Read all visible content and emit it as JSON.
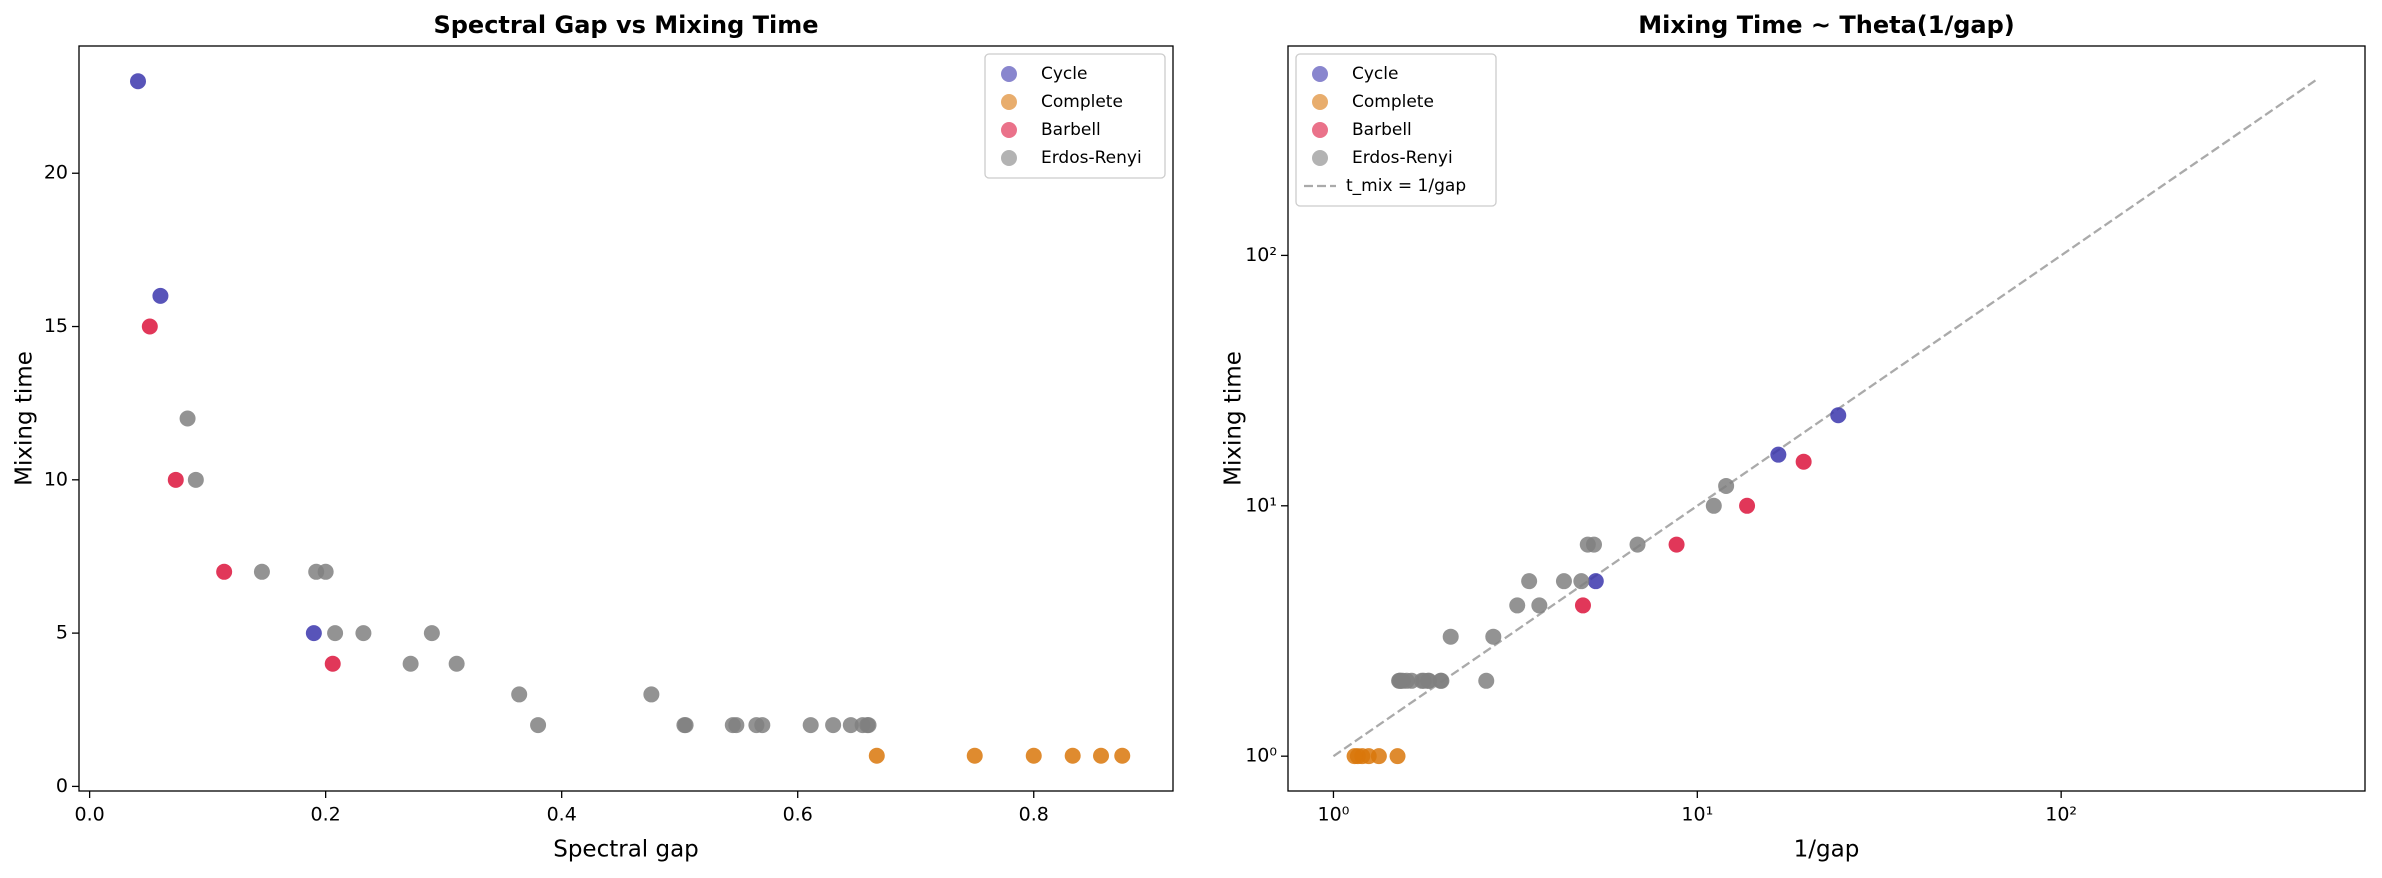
{
  "chart_data": [
    {
      "type": "scatter",
      "title": "Spectral Gap vs Mixing Time",
      "x_label": "Spectral gap",
      "y_label": "Mixing time",
      "xlim": [
        -0.009,
        0.918
      ],
      "ylim": [
        -0.15,
        24.15
      ],
      "xticks": [
        {
          "value": 0,
          "label": "0.0"
        },
        {
          "value": 0.2,
          "label": "0.2"
        },
        {
          "value": 0.4,
          "label": "0.4"
        },
        {
          "value": 0.6,
          "label": "0.6"
        },
        {
          "value": 0.8,
          "label": "0.8"
        }
      ],
      "yticks": [
        0,
        5,
        10,
        15,
        20
      ],
      "log_x": false,
      "log_y": false,
      "legend": "upper right",
      "series": [
        {
          "name": "Cycle",
          "color": "#3b36ad",
          "x": [
            0.041,
            0.06,
            0.19
          ],
          "values": [
            23,
            16,
            5
          ]
        },
        {
          "name": "Complete",
          "color": "#d9770b",
          "x": [
            0.667,
            0.75,
            0.8,
            0.833,
            0.857,
            0.875
          ],
          "values": [
            1,
            1,
            1,
            1,
            1,
            1
          ]
        },
        {
          "name": "Barbell",
          "color": "#dc143c",
          "x": [
            0.051,
            0.073,
            0.114,
            0.206
          ],
          "values": [
            15,
            10,
            7,
            4
          ]
        },
        {
          "name": "Erdos-Renyi",
          "color": "#808080",
          "x": [
            0.083,
            0.09,
            0.146,
            0.192,
            0.2,
            0.208,
            0.232,
            0.272,
            0.29,
            0.311,
            0.364,
            0.38,
            0.476,
            0.504,
            0.505,
            0.545,
            0.548,
            0.565,
            0.57,
            0.611,
            0.63,
            0.645,
            0.655,
            0.659,
            0.66
          ],
          "values": [
            12,
            10,
            7,
            7,
            7,
            5,
            5,
            4,
            5,
            4,
            3,
            2,
            3,
            2,
            2,
            2,
            2,
            2,
            2,
            2,
            2,
            2,
            2,
            2,
            2
          ]
        }
      ]
    },
    {
      "type": "scatter",
      "title": "Mixing Time ~ Theta(1/gap)",
      "x_label": "1/gap",
      "y_label": "Mixing time",
      "xlim": [
        0.75,
        684
      ],
      "ylim": [
        0.726,
        686
      ],
      "xticks": [
        {
          "value": 1,
          "label": "10⁰"
        },
        {
          "value": 10,
          "label": "10¹"
        },
        {
          "value": 100,
          "label": "10²"
        }
      ],
      "yticks": [
        {
          "value": 1,
          "label": "10⁰"
        },
        {
          "value": 10,
          "label": "10¹"
        },
        {
          "value": 100,
          "label": "10²"
        }
      ],
      "log_x": true,
      "log_y": true,
      "legend": "upper left",
      "series": [
        {
          "name": "Cycle",
          "color": "#3b36ad",
          "x": [
            24.4,
            16.7,
            5.26
          ],
          "values": [
            23,
            16,
            5
          ]
        },
        {
          "name": "Complete",
          "color": "#d9770b",
          "x": [
            1.5,
            1.333,
            1.25,
            1.2,
            1.167,
            1.143
          ],
          "values": [
            1,
            1,
            1,
            1,
            1,
            1
          ]
        },
        {
          "name": "Barbell",
          "color": "#dc143c",
          "x": [
            19.6,
            13.7,
            8.77,
            4.85
          ],
          "values": [
            15,
            10,
            7,
            4
          ]
        },
        {
          "name": "Erdos-Renyi",
          "color": "#808080",
          "x": [
            12,
            11.1,
            6.85,
            5.2,
            5,
            4.8,
            4.3,
            3.68,
            3.45,
            3.2,
            2.75,
            2.63,
            2.1,
            1.98,
            1.97,
            1.83,
            1.82,
            1.77,
            1.75,
            1.64,
            1.59,
            1.55,
            1.53,
            1.52,
            1.515
          ],
          "values": [
            12,
            10,
            7,
            7,
            7,
            5,
            5,
            4,
            5,
            4,
            3,
            2,
            3,
            2,
            2,
            2,
            2,
            2,
            2,
            2,
            2,
            2,
            2,
            2,
            2
          ]
        }
      ],
      "reference_line": {
        "label": "t_mix = 1/gap",
        "color": "#aaaaaa",
        "x": [
          1,
          500
        ],
        "values": [
          1,
          500
        ]
      }
    }
  ]
}
